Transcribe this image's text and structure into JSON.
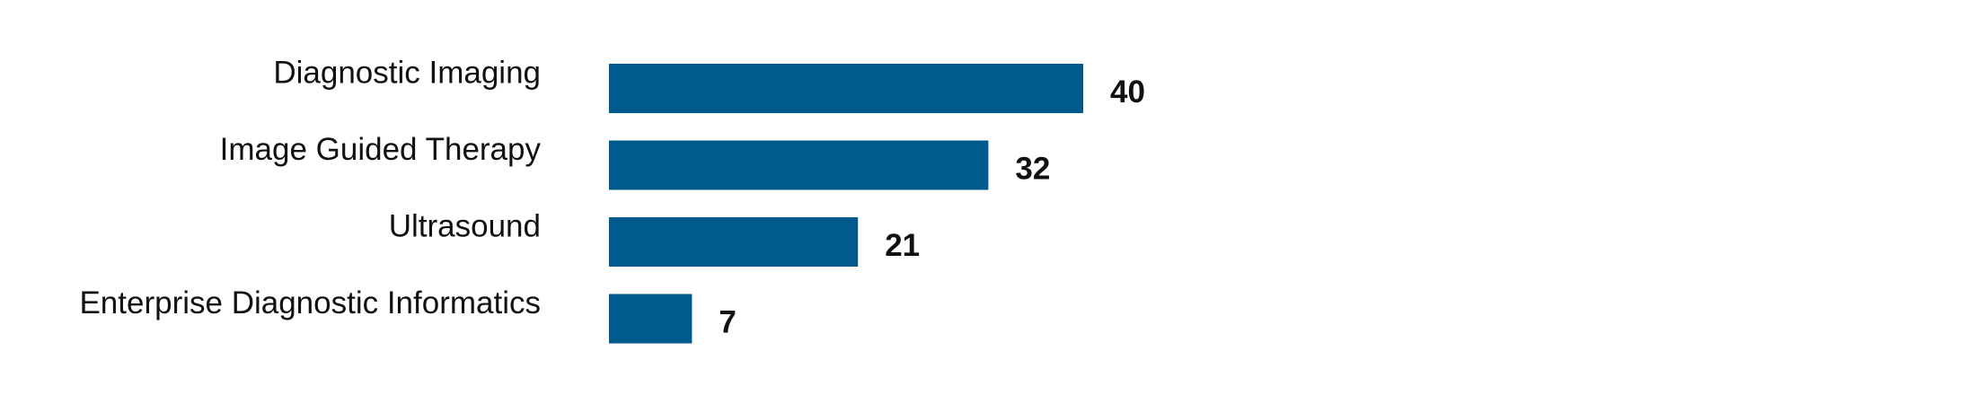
{
  "chart_data": {
    "type": "bar",
    "orientation": "horizontal",
    "categories": [
      "Diagnostic Imaging",
      "Image Guided Therapy",
      "Ultrasound",
      "Enterprise Diagnostic Informatics"
    ],
    "values": [
      40,
      32,
      21,
      7
    ],
    "color": "#005a8c"
  }
}
